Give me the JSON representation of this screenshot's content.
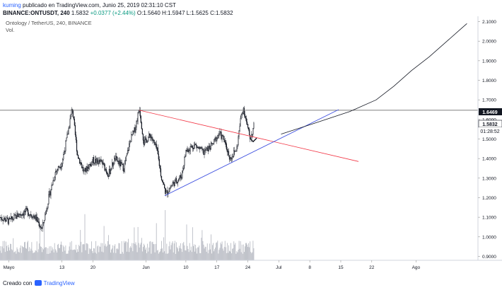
{
  "header": {
    "author": "kuming",
    "published": "publicado en TradingView.com, Junio 25, 2019 02:31:10 CST",
    "symbol": "BINANCE:ONTUSDT, 240",
    "last": "1.5832",
    "change": "+0.0377 (+2.44%)",
    "ohlc": "O:1.5640 H:1.5947 L:1.5625 C:1.5832"
  },
  "legend": {
    "title": "Ontology / TetherUS, 240, BINANCE",
    "vol_label": "Vol."
  },
  "price_labels": {
    "resistance": "1.6469",
    "current": "1.5832",
    "countdown": "01:28:52"
  },
  "footer": {
    "created": "Creado con",
    "brand": "TradingView"
  },
  "colors": {
    "candles": "#131722",
    "volume": "#b2b5be",
    "resistance_line": "#555555",
    "descending_line": "#f23645",
    "ascending_line": "#3d4fe0",
    "projection": "#131722",
    "label_bg": "#131722"
  },
  "chart_data": {
    "type": "candlestick",
    "y_axis": {
      "min": 0.88,
      "max": 2.12,
      "ticks": [
        "0.9000",
        "1.0000",
        "1.1000",
        "1.2000",
        "1.3000",
        "1.4000",
        "1.5000",
        "1.6000",
        "1.7000",
        "1.8000",
        "1.9000",
        "2.0000",
        "2.1000"
      ]
    },
    "x_axis": {
      "ticks": [
        {
          "label": "Mayo",
          "day": 1
        },
        {
          "label": "13",
          "day": 13
        },
        {
          "label": "20",
          "day": 20
        },
        {
          "label": "Jun",
          "day": 32
        },
        {
          "label": "10",
          "day": 41
        },
        {
          "label": "17",
          "day": 48
        },
        {
          "label": "24",
          "day": 55
        },
        {
          "label": "Jul",
          "day": 62
        },
        {
          "label": "8",
          "day": 69
        },
        {
          "label": "15",
          "day": 76
        },
        {
          "label": "22",
          "day": 83
        },
        {
          "label": "Ago",
          "day": 93
        }
      ],
      "day_range": [
        -1,
        107
      ]
    },
    "keypoints": [
      {
        "day": -1,
        "price": 1.1
      },
      {
        "day": 1,
        "price": 1.08
      },
      {
        "day": 3,
        "price": 1.11
      },
      {
        "day": 5,
        "price": 1.13
      },
      {
        "day": 7,
        "price": 1.1
      },
      {
        "day": 8.5,
        "price": 1.04
      },
      {
        "day": 10,
        "price": 1.2
      },
      {
        "day": 11.5,
        "price": 1.33
      },
      {
        "day": 13,
        "price": 1.38
      },
      {
        "day": 14.5,
        "price": 1.55
      },
      {
        "day": 15.3,
        "price": 1.66
      },
      {
        "day": 16.5,
        "price": 1.42
      },
      {
        "day": 18,
        "price": 1.33
      },
      {
        "day": 20,
        "price": 1.39
      },
      {
        "day": 22,
        "price": 1.38
      },
      {
        "day": 23.5,
        "price": 1.32
      },
      {
        "day": 25,
        "price": 1.4
      },
      {
        "day": 27,
        "price": 1.35
      },
      {
        "day": 28.5,
        "price": 1.5
      },
      {
        "day": 29.5,
        "price": 1.55
      },
      {
        "day": 30.5,
        "price": 1.66
      },
      {
        "day": 31.5,
        "price": 1.48
      },
      {
        "day": 33,
        "price": 1.52
      },
      {
        "day": 34.5,
        "price": 1.44
      },
      {
        "day": 35.5,
        "price": 1.3
      },
      {
        "day": 36.5,
        "price": 1.22
      },
      {
        "day": 38,
        "price": 1.27
      },
      {
        "day": 40,
        "price": 1.31
      },
      {
        "day": 41,
        "price": 1.44
      },
      {
        "day": 43,
        "price": 1.47
      },
      {
        "day": 45,
        "price": 1.43
      },
      {
        "day": 47,
        "price": 1.47
      },
      {
        "day": 48.5,
        "price": 1.53
      },
      {
        "day": 49.5,
        "price": 1.5
      },
      {
        "day": 51,
        "price": 1.4
      },
      {
        "day": 52.5,
        "price": 1.45
      },
      {
        "day": 53.5,
        "price": 1.62
      },
      {
        "day": 54,
        "price": 1.66
      },
      {
        "day": 55,
        "price": 1.55
      },
      {
        "day": 55.6,
        "price": 1.5
      },
      {
        "day": 56.5,
        "price": 1.58
      }
    ],
    "resistance": 1.6469,
    "current": 1.5832,
    "descending_trendline": [
      {
        "day": 30.5,
        "price": 1.6469
      },
      {
        "day": 80,
        "price": 1.385
      }
    ],
    "ascending_trendline": [
      {
        "day": 36.2,
        "price": 1.21
      },
      {
        "day": 75.5,
        "price": 1.65
      }
    ],
    "projection": [
      {
        "day": 62.5,
        "price": 1.525
      },
      {
        "day": 70,
        "price": 1.58
      },
      {
        "day": 78,
        "price": 1.64
      },
      {
        "day": 84,
        "price": 1.7
      },
      {
        "day": 88,
        "price": 1.77
      },
      {
        "day": 92,
        "price": 1.85
      },
      {
        "day": 96,
        "price": 1.92
      },
      {
        "day": 100,
        "price": 2.0
      },
      {
        "day": 103,
        "price": 2.06
      },
      {
        "day": 104.5,
        "price": 2.09
      }
    ],
    "volume_max_fraction": 1.0
  }
}
